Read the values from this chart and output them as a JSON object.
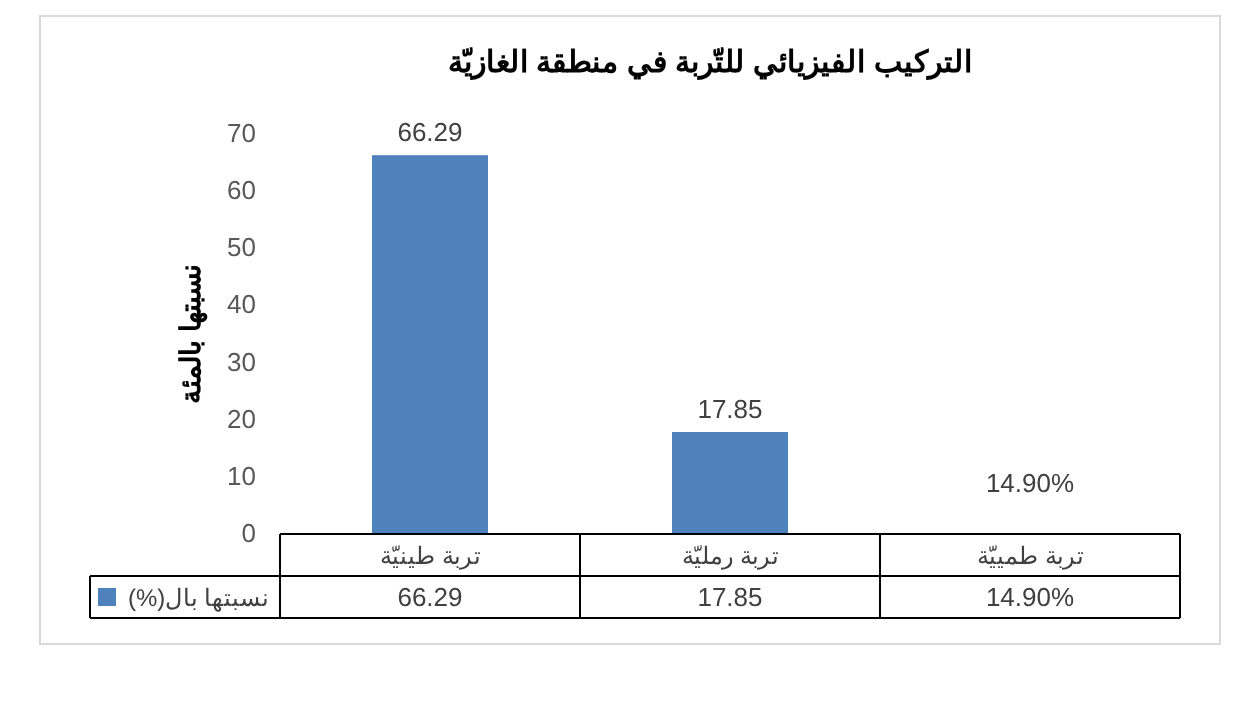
{
  "chart_data": {
    "type": "bar",
    "title": "التركيب الفيزيائي للتّربة في منطقة الغازيّة",
    "ylabel": "نسبتها بالمئة",
    "categories": [
      "تربة طينيّة",
      "تربة رمليّة",
      "تربة طمييّة"
    ],
    "series": [
      {
        "name": "نسبتها بال(%)",
        "color": "#4f81bd",
        "values": [
          66.29,
          17.85,
          0.149
        ],
        "value_labels": [
          "66.29",
          "17.85",
          "14.90%"
        ]
      }
    ],
    "ylim": [
      0,
      70
    ],
    "yticks": [
      0,
      10,
      20,
      30,
      40,
      50,
      60,
      70
    ],
    "grid": false,
    "legend": "bottom"
  }
}
